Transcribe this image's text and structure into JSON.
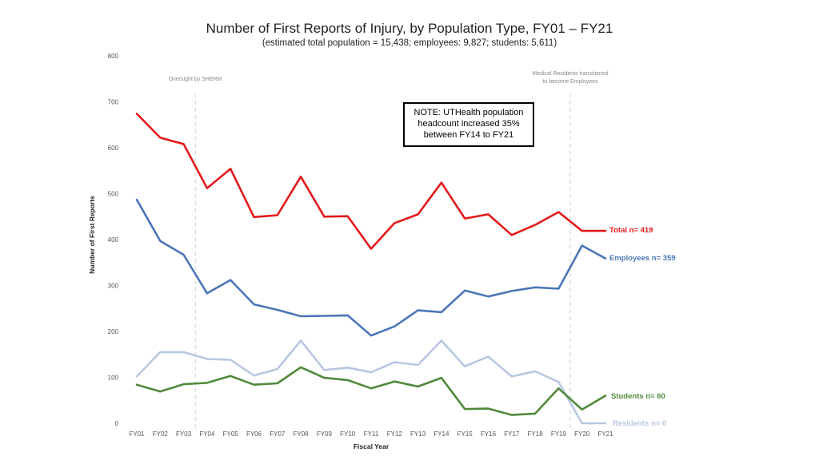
{
  "chart_data": {
    "type": "line",
    "title": "Number of First Reports of Injury, by Population Type, FY01 – FY21",
    "subtitle": "(estimated total population = 15,438; employees: 9,827; students: 5,611)",
    "xlabel": "Fiscal Year",
    "ylabel": "Number of First Reports",
    "ylim": [
      0,
      800
    ],
    "yticks": [
      "0",
      "100",
      "200",
      "300",
      "400",
      "500",
      "600",
      "700",
      "800"
    ],
    "grid": false,
    "categories": [
      "FY01",
      "FY02",
      "FY03",
      "FY04",
      "FY05",
      "FY06",
      "FY07",
      "FY08",
      "FY09",
      "FY10",
      "FY11",
      "FY12",
      "FY13",
      "FY14",
      "FY15",
      "FY16",
      "FY17",
      "FY18",
      "FY19",
      "FY20",
      "FY21"
    ],
    "series": [
      {
        "key": "total",
        "label": "Total n= 419",
        "color": "#e3191b",
        "values": [
          674,
          622,
          608,
          512,
          554,
          449,
          453,
          537,
          450,
          451,
          380,
          436,
          455,
          524,
          446,
          455,
          410,
          432,
          460,
          419,
          419
        ]
      },
      {
        "key": "employees",
        "label": "Employees n= 359",
        "color": "#4a76b7",
        "values": [
          487,
          397,
          367,
          283,
          312,
          259,
          247,
          233,
          234,
          235,
          191,
          211,
          246,
          242,
          289,
          276,
          288,
          296,
          293,
          387,
          359
        ]
      },
      {
        "key": "residents",
        "label": "Residents n= 0",
        "color": "#b8c7e0",
        "values": [
          102,
          155,
          155,
          140,
          138,
          104,
          118,
          180,
          116,
          121,
          111,
          133,
          127,
          180,
          124,
          145,
          102,
          113,
          90,
          0,
          0
        ]
      },
      {
        "key": "students",
        "label": "Students n= 60",
        "color": "#4e8a3a",
        "values": [
          84,
          69,
          85,
          88,
          103,
          84,
          87,
          122,
          99,
          94,
          76,
          91,
          80,
          99,
          31,
          32,
          18,
          21,
          76,
          30,
          60
        ]
      }
    ],
    "vertical_markers": [
      {
        "between": [
          "FY03",
          "FY04"
        ],
        "label": [
          "Oversight by SHERM"
        ]
      },
      {
        "between": [
          "FY19",
          "FY20"
        ],
        "label": [
          "Medical Residents transitioned",
          "to become Employees"
        ]
      }
    ],
    "note": [
      "NOTE: UTHealth population",
      "headcount increased 35%",
      "between FY14 to FY21"
    ]
  }
}
